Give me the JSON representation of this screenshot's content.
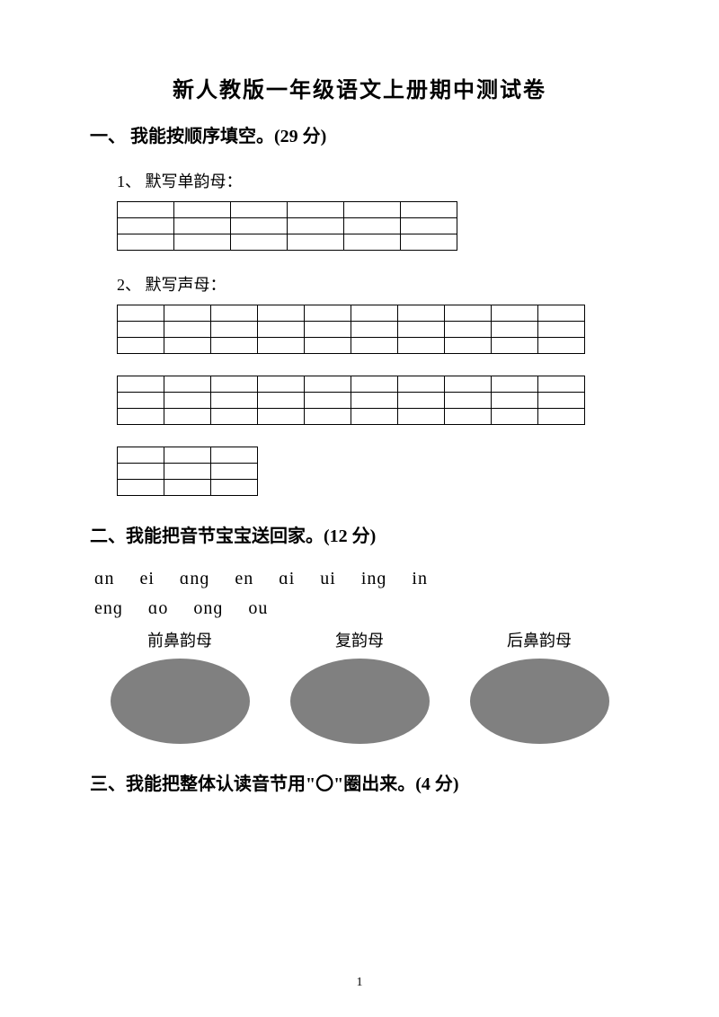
{
  "title": "新人教版一年级语文上册期中测试卷",
  "section1": {
    "heading": "一、 我能按顺序填空。(29 分)",
    "item1": "1、 默写单韵母：",
    "item2": "2、 默写声母：",
    "table1": {
      "rows": 3,
      "cols": 6
    },
    "table2a": {
      "rows": 3,
      "cols": 10
    },
    "table2b": {
      "rows": 3,
      "cols": 10
    },
    "table2c": {
      "rows": 3,
      "cols": 3
    }
  },
  "section2": {
    "heading": "二、我能把音节宝宝送回家。(12 分)",
    "syllables_row1": [
      "ɑn",
      "ei",
      "ɑnɡ",
      "en",
      "ɑi",
      "ui",
      "inɡ",
      "in"
    ],
    "syllables_row2": [
      "enɡ",
      "ɑo",
      "onɡ",
      "ou"
    ],
    "categories": [
      {
        "label": "前鼻韵母"
      },
      {
        "label": "复韵母"
      },
      {
        "label": "后鼻韵母"
      }
    ],
    "ellipse_color": "#808080"
  },
  "section3": {
    "heading": "三、我能把整体认读音节用\"〇\"圈出来。(4 分)"
  },
  "page_number": "1"
}
